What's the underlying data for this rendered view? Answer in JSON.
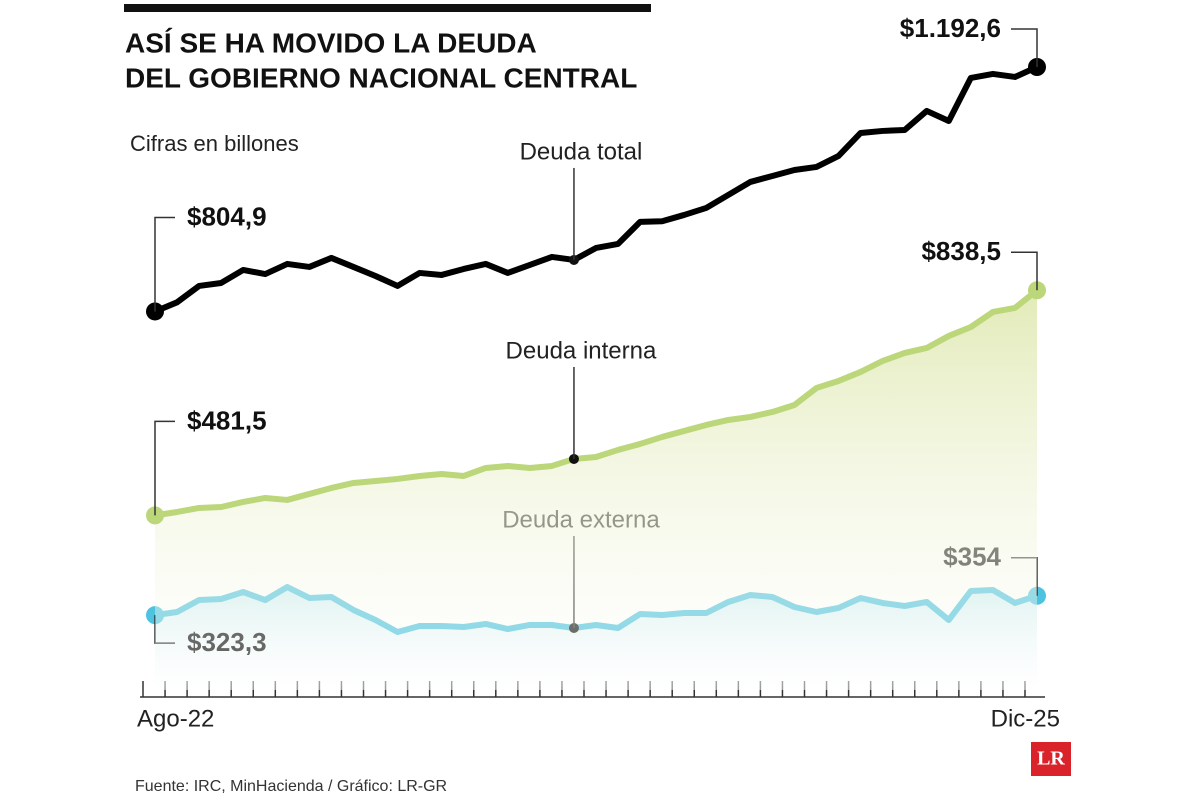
{
  "chart_data": {
    "type": "line",
    "title": [
      "ASÍ SE HA MOVIDO LA DEUDA",
      "DEL GOBIERNO NACIONAL CENTRAL"
    ],
    "subtitle": "Cifras en billones",
    "source": "Fuente: IRC, MinHacienda / Gráfico: LR-GR",
    "logo": "LR",
    "categories": [
      "Ago-22",
      null,
      null,
      null,
      null,
      null,
      null,
      null,
      null,
      null,
      null,
      null,
      null,
      null,
      null,
      null,
      null,
      null,
      null,
      null,
      null,
      null,
      null,
      null,
      null,
      null,
      null,
      null,
      null,
      null,
      null,
      null,
      null,
      null,
      null,
      null,
      null,
      null,
      null,
      null,
      "Dic-25"
    ],
    "series": [
      {
        "name": "Deuda total",
        "color": "#000000",
        "area": false,
        "values": [
          804.9,
          819.4,
          845.4,
          850.1,
          870.7,
          864.2,
          880.3,
          875.5,
          889.8,
          875.5,
          861.2,
          845.4,
          866.0,
          862.8,
          872.3,
          880.3,
          866.0,
          878.7,
          891.4,
          886.6,
          905.6,
          912.0,
          946.9,
          948.0,
          958.0,
          969.1,
          989.7,
          1010.3,
          1019.8,
          1029.3,
          1034.1,
          1051.5,
          1088.0,
          1091.2,
          1092.7,
          1122.9,
          1107.0,
          1175.3,
          1181.6,
          1176.8,
          1192.6
        ],
        "value_labels": [
          "$804,9",
          null,
          null,
          null,
          null,
          null,
          null,
          null,
          null,
          null,
          null,
          null,
          null,
          null,
          null,
          null,
          null,
          null,
          null,
          null,
          null,
          null,
          null,
          null,
          null,
          null,
          null,
          null,
          null,
          null,
          null,
          null,
          null,
          null,
          null,
          null,
          null,
          null,
          null,
          null,
          "$1.192,6"
        ]
      },
      {
        "name": "Deuda interna",
        "color": "#bcd67a",
        "area": true,
        "values": [
          481.5,
          486.9,
          493.3,
          494.8,
          502.8,
          509.1,
          506.0,
          515.5,
          525.0,
          532.9,
          536.1,
          539.3,
          544.0,
          547.2,
          544.0,
          556.7,
          559.9,
          556.7,
          559.9,
          571.0,
          574.1,
          585.3,
          594.8,
          605.9,
          615.4,
          624.9,
          632.8,
          637.6,
          645.5,
          656.6,
          683.6,
          694.7,
          709.0,
          726.4,
          739.1,
          747.0,
          766.1,
          780.3,
          804.1,
          810.5,
          838.5
        ],
        "value_labels": [
          "$481,5",
          null,
          null,
          null,
          null,
          null,
          null,
          null,
          null,
          null,
          null,
          null,
          null,
          null,
          null,
          null,
          null,
          null,
          null,
          null,
          null,
          null,
          null,
          null,
          null,
          null,
          null,
          null,
          null,
          null,
          null,
          null,
          null,
          null,
          null,
          null,
          null,
          null,
          null,
          null,
          "$838,5"
        ]
      },
      {
        "name": "Deuda externa",
        "color": "#4ec3e0",
        "area": true,
        "values": [
          323.3,
          328.3,
          347.3,
          348.9,
          360.0,
          347.3,
          367.9,
          350.5,
          352.1,
          331.5,
          315.6,
          296.6,
          306.1,
          306.1,
          304.5,
          309.3,
          301.3,
          307.7,
          307.7,
          302.9,
          307.7,
          302.9,
          325.1,
          323.6,
          326.7,
          326.7,
          344.2,
          355.3,
          352.1,
          336.2,
          328.3,
          334.7,
          350.5,
          342.6,
          337.8,
          344.2,
          315.6,
          361.6,
          363.2,
          342.6,
          354
        ],
        "value_labels": [
          "$323,3",
          null,
          null,
          null,
          null,
          null,
          null,
          null,
          null,
          null,
          null,
          null,
          null,
          null,
          null,
          null,
          null,
          null,
          null,
          null,
          null,
          null,
          null,
          null,
          null,
          null,
          null,
          null,
          null,
          null,
          null,
          null,
          null,
          null,
          null,
          null,
          null,
          null,
          null,
          null,
          "$354"
        ]
      }
    ]
  }
}
